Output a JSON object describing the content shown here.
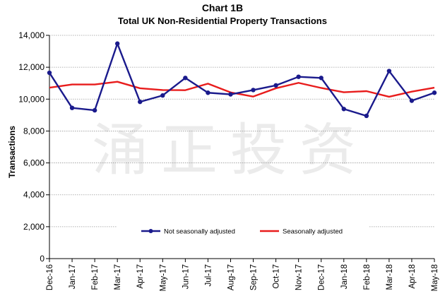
{
  "chart_data": {
    "type": "line",
    "title": "Chart 1B",
    "subtitle": "Total UK Non-Residential Property Transactions",
    "xlabel": "",
    "ylabel": "Transactions",
    "ylim": [
      0,
      14000
    ],
    "yticks": [
      "0",
      "2,000",
      "4,000",
      "6,000",
      "8,000",
      "10,000",
      "12,000",
      "14,000"
    ],
    "grid": true,
    "legend_position": "bottom-center",
    "categories": [
      "Dec-16",
      "Jan-17",
      "Feb-17",
      "Mar-17",
      "Apr-17",
      "May-17",
      "Jun-17",
      "Jul-17",
      "Aug-17",
      "Sep-17",
      "Oct-17",
      "Nov-17",
      "Dec-17",
      "Jan-18",
      "Feb-18",
      "Mar-18",
      "Apr-18",
      "May-18"
    ],
    "series": [
      {
        "name": "Not seasonally adjusted",
        "color": "#1a1a8c",
        "marker": "circle",
        "values": [
          11650,
          9450,
          9300,
          13480,
          9830,
          10230,
          11330,
          10400,
          10300,
          10570,
          10860,
          11400,
          11330,
          9380,
          8950,
          11760,
          9900,
          10400
        ]
      },
      {
        "name": "Seasonally adjusted",
        "color": "#e81c1c",
        "marker": "none",
        "values": [
          10720,
          10920,
          10920,
          11090,
          10680,
          10570,
          10560,
          10970,
          10420,
          10160,
          10680,
          11020,
          10700,
          10430,
          10500,
          10150,
          10470,
          10720
        ]
      }
    ],
    "watermark": "涌正投资"
  }
}
